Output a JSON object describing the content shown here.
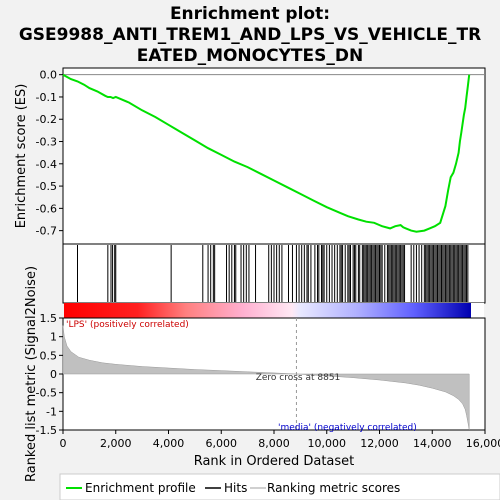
{
  "chart_data": {
    "type": "line",
    "title_lines": [
      "Enrichment plot:",
      "GSE9988_ANTI_TREM1_AND_LPS_VS_VEHICLE_TR",
      "EATED_MONOCYTES_DN"
    ],
    "top_panel": {
      "ylabel": "Enrichment score (ES)",
      "ylim": [
        -0.76,
        0.03
      ],
      "yticks": [
        0.0,
        -0.1,
        -0.2,
        -0.3,
        -0.4,
        -0.5,
        -0.6,
        -0.7
      ],
      "ytick_labels": [
        "0.0",
        "-0.1",
        "-0.2",
        "-0.3",
        "-0.4",
        "-0.5",
        "-0.6",
        "-0.7"
      ],
      "series": [
        {
          "name": "Enrichment profile",
          "color": "#00e000",
          "x": [
            0,
            300,
            550,
            800,
            1000,
            1300,
            1600,
            1700,
            1800,
            1900,
            2000,
            2100,
            2500,
            3000,
            3500,
            4000,
            4500,
            5000,
            5500,
            6000,
            6500,
            7000,
            7500,
            8000,
            8500,
            9000,
            9500,
            10000,
            10500,
            10800,
            11200,
            11500,
            11800,
            12100,
            12400,
            12600,
            12800,
            12900,
            13000,
            13200,
            13400,
            13700,
            13900,
            14100,
            14300,
            14500,
            14600,
            14700,
            14800,
            14900,
            15000,
            15050,
            15100,
            15150,
            15200,
            15250,
            15300,
            15350,
            15400
          ],
          "y": [
            0.0,
            -0.02,
            -0.03,
            -0.045,
            -0.06,
            -0.075,
            -0.095,
            -0.1,
            -0.1,
            -0.105,
            -0.1,
            -0.105,
            -0.125,
            -0.16,
            -0.19,
            -0.225,
            -0.26,
            -0.295,
            -0.33,
            -0.36,
            -0.39,
            -0.415,
            -0.445,
            -0.475,
            -0.505,
            -0.535,
            -0.565,
            -0.595,
            -0.62,
            -0.635,
            -0.65,
            -0.66,
            -0.665,
            -0.68,
            -0.69,
            -0.68,
            -0.675,
            -0.685,
            -0.69,
            -0.7,
            -0.705,
            -0.7,
            -0.69,
            -0.68,
            -0.665,
            -0.59,
            -0.52,
            -0.46,
            -0.44,
            -0.4,
            -0.35,
            -0.3,
            -0.26,
            -0.22,
            -0.18,
            -0.15,
            -0.1,
            -0.05,
            0.0
          ]
        }
      ]
    },
    "hits_panel": {
      "legend_label": "Hits",
      "color": "#000000",
      "positions": [
        550,
        1700,
        1820,
        1880,
        1960,
        2000,
        4100,
        5300,
        5500,
        5600,
        5700,
        5750,
        6200,
        6300,
        6400,
        6500,
        6550,
        6750,
        6850,
        6950,
        7050,
        7300,
        7800,
        7900,
        8000,
        8100,
        8200,
        8300,
        8550,
        8700,
        8850,
        8950,
        9050,
        9150,
        9250,
        9300,
        9400,
        9550,
        9650,
        9700,
        9800,
        9850,
        9900,
        10000,
        10100,
        10200,
        10300,
        10400,
        10500,
        10550,
        10600,
        10700,
        10800,
        10850,
        10900,
        11000,
        11050,
        11100,
        11200,
        11250,
        11350,
        11400,
        11450,
        11500,
        11550,
        11600,
        11650,
        11700,
        11750,
        11800,
        11850,
        11900,
        11950,
        12000,
        12050,
        12100,
        12200,
        12300,
        12350,
        12400,
        12450,
        12500,
        12550,
        12600,
        12650,
        12700,
        12750,
        12800,
        12850,
        12900,
        12950,
        13200,
        13300,
        13400,
        13500,
        13600,
        13700,
        13750,
        13800,
        13850,
        13900,
        13950,
        14000,
        14050,
        14100,
        14150,
        14200,
        14250,
        14300,
        14350,
        14400,
        14450,
        14500,
        14550,
        14600,
        14650,
        14700,
        14750,
        14800,
        14850,
        14900,
        14950,
        15000,
        15050,
        15100,
        15150,
        15200,
        15250,
        15300,
        15350
      ]
    },
    "bottom_panel": {
      "ylabel": "Ranked list metric (Signal2Noise)",
      "legend_label": "Ranking metric scores",
      "ylim": [
        -1.5,
        1.5
      ],
      "yticks": [
        1.5,
        1.0,
        0.5,
        0.0,
        -0.5,
        -1.0,
        -1.5
      ],
      "ytick_labels": [
        "1.5",
        "1",
        "0.5",
        "0",
        "-0.5",
        "-1",
        "-1.5"
      ],
      "fill_color": "#c0c0c0",
      "x": [
        0,
        50,
        150,
        300,
        600,
        1000,
        1500,
        2000,
        3000,
        4000,
        5000,
        6000,
        7000,
        8000,
        8851,
        10000,
        11000,
        12000,
        13000,
        13500,
        14000,
        14500,
        14800,
        15000,
        15150,
        15250,
        15300,
        15350,
        15400
      ],
      "y": [
        1.3,
        1.0,
        0.75,
        0.6,
        0.45,
        0.37,
        0.3,
        0.26,
        0.2,
        0.16,
        0.12,
        0.09,
        0.06,
        0.03,
        0.0,
        -0.05,
        -0.1,
        -0.16,
        -0.24,
        -0.3,
        -0.38,
        -0.48,
        -0.58,
        -0.68,
        -0.8,
        -0.95,
        -1.1,
        -1.3,
        -1.5
      ],
      "zero_cross_label": "Zero cross at 8851",
      "zero_cross": 8851,
      "positive_label": "'LPS' (positively correlated)",
      "negative_label": "'media' (negatively correlated)",
      "positive_color": "#ff0000",
      "negative_color": "#0000ff"
    },
    "xlabel": "Rank in Ordered Dataset",
    "xlim": [
      0,
      16000
    ],
    "xticks": [
      0,
      2000,
      4000,
      6000,
      8000,
      10000,
      12000,
      14000,
      16000
    ],
    "xtick_labels": [
      "0",
      "2,000",
      "4,000",
      "6,000",
      "8,000",
      "10,000",
      "12,000",
      "14,000",
      "16,000"
    ],
    "n_genes": 15400
  }
}
